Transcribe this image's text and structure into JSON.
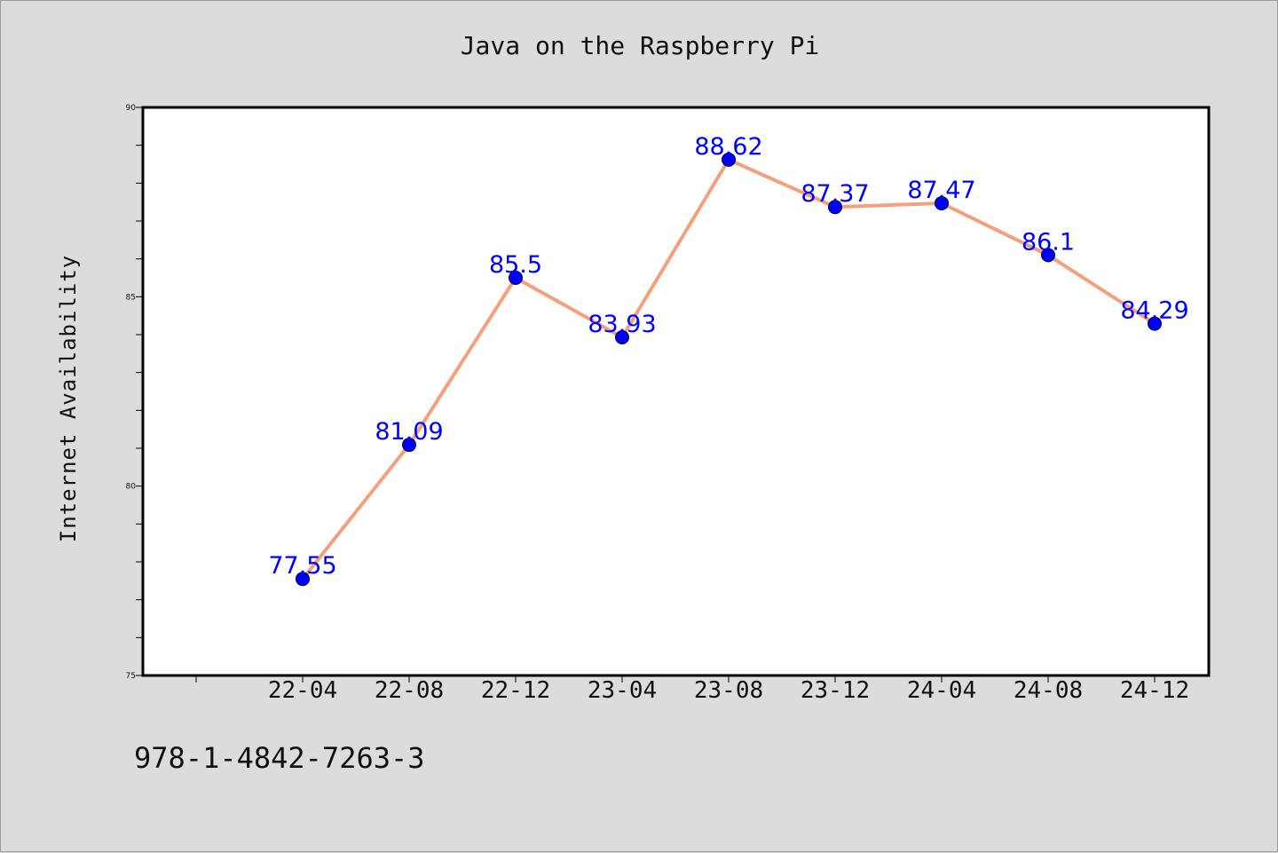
{
  "chart_data": {
    "type": "line",
    "title": "Java on the Raspberry Pi",
    "xlabel": "",
    "ylabel": "Internet Availability",
    "categories": [
      "22-04",
      "22-08",
      "22-12",
      "23-04",
      "23-08",
      "23-12",
      "24-04",
      "24-08",
      "24-12"
    ],
    "series": [
      {
        "values": [
          77.55,
          81.09,
          85.5,
          83.93,
          88.62,
          87.37,
          87.47,
          86.1,
          84.29
        ]
      }
    ],
    "data_labels": [
      "77.55",
      "81.09",
      "85.5",
      "83.93",
      "88.62",
      "87.37",
      "87.47",
      "86.1",
      "84.29"
    ],
    "ylim": [
      75,
      90
    ],
    "yticks": [
      "75",
      "80",
      "85",
      "90"
    ],
    "grid": false,
    "line_color": "#f4a07c",
    "marker_color": "#0000ff",
    "label_color": "#0000ff"
  },
  "footer": {
    "text": "978-1-4842-7263-3"
  }
}
